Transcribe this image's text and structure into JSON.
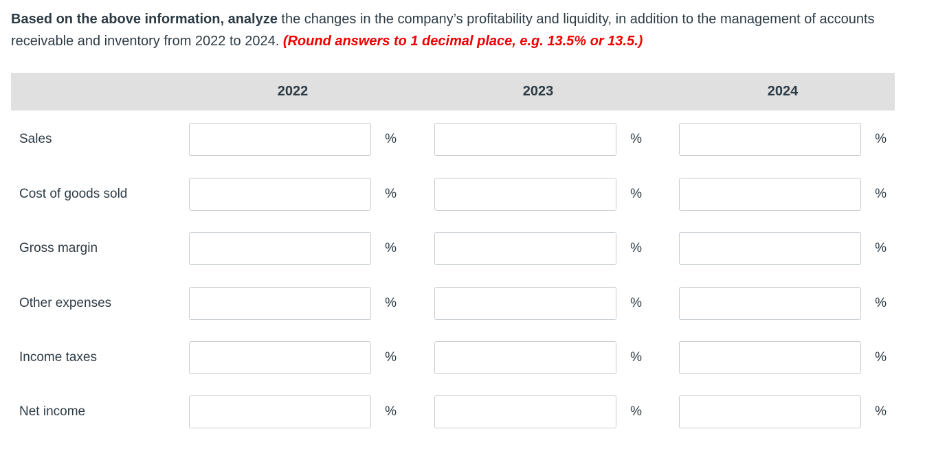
{
  "instruction": {
    "bold_lead": "Based on the above information, analyze",
    "body": " the changes in the company’s profitability and liquidity, in addition to the management of accounts receivable and inventory from 2022 to 2024. ",
    "note": "(Round answers to 1 decimal place, e.g. 13.5% or 13.5.)"
  },
  "table": {
    "year_headers": [
      "2022",
      "2023",
      "2024"
    ],
    "unit": "%",
    "rows": [
      {
        "label": "Sales",
        "values": [
          "",
          "",
          ""
        ]
      },
      {
        "label": "Cost of goods sold",
        "values": [
          "",
          "",
          ""
        ]
      },
      {
        "label": "Gross margin",
        "values": [
          "",
          "",
          ""
        ]
      },
      {
        "label": "Other expenses",
        "values": [
          "",
          "",
          ""
        ]
      },
      {
        "label": "Income taxes",
        "values": [
          "",
          "",
          ""
        ]
      },
      {
        "label": "Net income",
        "values": [
          "",
          "",
          ""
        ]
      }
    ]
  },
  "colors": {
    "text": "#2d3b45",
    "note_red": "#ef0000",
    "header_bg": "#e0e0e0",
    "input_border": "#c7cdd1"
  }
}
